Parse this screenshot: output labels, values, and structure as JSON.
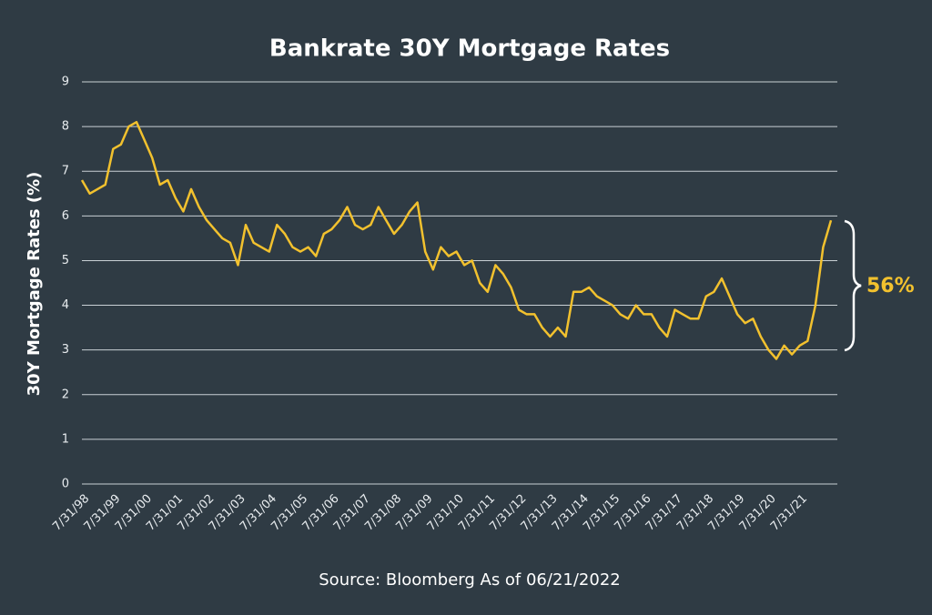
{
  "chart_data": {
    "type": "line",
    "title": "Bankrate 30Y Mortgage Rates",
    "y_label": "30Y Mortgage Rates (%)",
    "source": "Source: Bloomberg As of 06/21/2022",
    "annotation": "56%",
    "categories": [
      "7/31/98",
      null,
      null,
      null,
      "7/31/99",
      null,
      null,
      null,
      "7/31/00",
      null,
      null,
      null,
      "7/31/01",
      null,
      null,
      null,
      "7/31/02",
      null,
      null,
      null,
      "7/31/03",
      null,
      null,
      null,
      "7/31/04",
      null,
      null,
      null,
      "7/31/05",
      null,
      null,
      null,
      "7/31/06",
      null,
      null,
      null,
      "7/31/07",
      null,
      null,
      null,
      "7/31/08",
      null,
      null,
      null,
      "7/31/09",
      null,
      null,
      null,
      "7/31/10",
      null,
      null,
      null,
      "7/31/11",
      null,
      null,
      null,
      "7/31/12",
      null,
      null,
      null,
      "7/31/13",
      null,
      null,
      null,
      "7/31/14",
      null,
      null,
      null,
      "7/31/15",
      null,
      null,
      null,
      "7/31/16",
      null,
      null,
      null,
      "7/31/17",
      null,
      null,
      null,
      "7/31/18",
      null,
      null,
      null,
      "7/31/19",
      null,
      null,
      null,
      "7/31/20",
      null,
      null,
      null,
      "7/31/21",
      null,
      null,
      null,
      null
    ],
    "series": [
      {
        "name": "30Y Mortgage Rate",
        "color": "#f2c12e",
        "values": [
          6.8,
          6.5,
          6.6,
          6.7,
          7.5,
          7.6,
          8.0,
          8.1,
          7.7,
          7.3,
          6.7,
          6.8,
          6.4,
          6.1,
          6.6,
          6.2,
          5.9,
          5.7,
          5.5,
          5.4,
          4.9,
          5.8,
          5.4,
          5.3,
          5.2,
          5.8,
          5.6,
          5.3,
          5.2,
          5.3,
          5.1,
          5.6,
          5.7,
          5.9,
          6.2,
          5.8,
          5.7,
          5.8,
          6.2,
          5.9,
          5.6,
          5.8,
          6.1,
          6.3,
          5.2,
          4.8,
          5.3,
          5.1,
          5.2,
          4.9,
          5.0,
          4.5,
          4.3,
          4.9,
          4.7,
          4.4,
          3.9,
          3.8,
          3.8,
          3.5,
          3.3,
          3.5,
          3.3,
          4.3,
          4.3,
          4.4,
          4.2,
          4.1,
          4.0,
          3.8,
          3.7,
          4.0,
          3.8,
          3.8,
          3.5,
          3.3,
          3.9,
          3.8,
          3.7,
          3.7,
          4.2,
          4.3,
          4.6,
          4.2,
          3.8,
          3.6,
          3.7,
          3.3,
          3.0,
          2.8,
          3.1,
          2.9,
          3.1,
          3.2,
          4.0,
          5.3,
          5.9
        ]
      }
    ],
    "ylim": [
      0,
      9
    ],
    "yticks": [
      0,
      1,
      2,
      3,
      4,
      5,
      6,
      7,
      8,
      9
    ],
    "grid": true
  }
}
